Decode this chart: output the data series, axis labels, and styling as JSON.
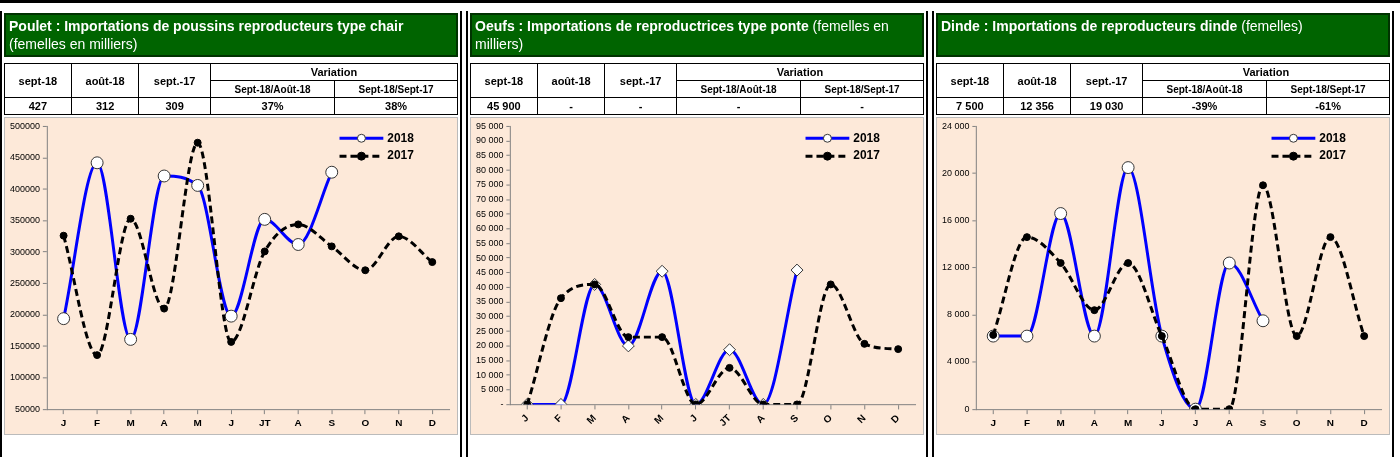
{
  "chart_data": [
    {
      "type": "line",
      "title": "Poulet : Importations de poussins reproducteurs type chair",
      "subtitle": "(femelles en milliers)",
      "annotations": [
        "sept-18",
        "août-18",
        "sept.-17",
        "Variation",
        "Sept-18/Août-18",
        "Sept-18/Sept-17",
        "427",
        "312",
        "309",
        "37%",
        "38%"
      ],
      "categories": [
        "J",
        "F",
        "M",
        "A",
        "M",
        "J",
        "JT",
        "A",
        "S",
        "O",
        "N",
        "D"
      ],
      "series": [
        {
          "name": "2018",
          "color": "#0000ff",
          "line_style": "solid",
          "marker": "circle",
          "values": [
            194000,
            442000,
            161000,
            421000,
            406000,
            198000,
            352000,
            312000,
            427000,
            null,
            null,
            null
          ]
        },
        {
          "name": "2017",
          "color": "#000000",
          "line_style": "dashed",
          "marker": "circle",
          "values": [
            326000,
            136000,
            353000,
            210000,
            474000,
            157000,
            301000,
            344000,
            309000,
            271000,
            325000,
            284000
          ]
        }
      ],
      "ylim": [
        50000,
        500000
      ],
      "yticks": [
        50000,
        100000,
        150000,
        200000,
        250000,
        300000,
        350000,
        400000,
        450000,
        500000
      ],
      "grid": false,
      "legend": "top right"
    },
    {
      "type": "line",
      "title": "Oeufs : Importations de reproductrices type ponte",
      "subtitle": "(femelles en milliers)",
      "annotations": [
        "sept-18",
        "août-18",
        "sept.-17",
        "Variation",
        "Sept-18/Août-18",
        "Sept-18/Sept-17",
        "45 900",
        "-",
        "-",
        "-",
        "-"
      ],
      "categories": [
        "J",
        "F",
        "M",
        "A",
        "M",
        "J",
        "JT",
        "A",
        "S",
        "O",
        "N",
        "D"
      ],
      "series": [
        {
          "name": "2018",
          "color": "#0000ff",
          "line_style": "solid",
          "marker": "diamond",
          "values": [
            0,
            0,
            41000,
            20000,
            45500,
            0,
            18700,
            0,
            45900,
            null,
            null,
            null
          ]
        },
        {
          "name": "2017",
          "color": "#000000",
          "line_style": "dashed",
          "marker": "circle",
          "values": [
            0,
            36300,
            41000,
            23000,
            23000,
            0,
            12500,
            0,
            0,
            41000,
            20700,
            18900
          ]
        }
      ],
      "ylim": [
        0,
        95000
      ],
      "yticks": [
        {
          "value": 0,
          "label": "-"
        },
        {
          "value": 5000,
          "label": "5 000"
        },
        {
          "value": 10000,
          "label": "10 000"
        },
        {
          "value": 15000,
          "label": "15 000"
        },
        {
          "value": 20000,
          "label": "20 000"
        },
        {
          "value": 25000,
          "label": "25 000"
        },
        {
          "value": 30000,
          "label": "30 000"
        },
        {
          "value": 35000,
          "label": "35 000"
        },
        {
          "value": 40000,
          "label": "40 000"
        },
        {
          "value": 45000,
          "label": "45 000"
        },
        {
          "value": 50000,
          "label": "50 000"
        },
        {
          "value": 55000,
          "label": "55 000"
        },
        {
          "value": 60000,
          "label": "60 000"
        },
        {
          "value": 65000,
          "label": "65 000"
        },
        {
          "value": 70000,
          "label": "70 000"
        },
        {
          "value": 75000,
          "label": "75 000"
        },
        {
          "value": 80000,
          "label": "80 000"
        },
        {
          "value": 85000,
          "label": "85 000"
        },
        {
          "value": 90000,
          "label": "90 000"
        },
        {
          "value": 95000,
          "label": "95 000"
        }
      ],
      "grid": false,
      "legend": "top right"
    },
    {
      "type": "line",
      "title": "Dinde : Importations de reproducteurs dinde",
      "subtitle": "(femelles)",
      "annotations": [
        "sept-18",
        "août-18",
        "sept.-17",
        "Variation",
        "Sept-18/Août-18",
        "Sept-18/Sept-17",
        "7 500",
        "12 356",
        "19 030",
        "-39%",
        "-61%"
      ],
      "categories": [
        "J",
        "F",
        "M",
        "A",
        "M",
        "J",
        "J",
        "A",
        "S",
        "O",
        "N",
        "D"
      ],
      "series": [
        {
          "name": "2018",
          "color": "#0000ff",
          "line_style": "solid",
          "marker": "circle",
          "values": [
            6200,
            6200,
            16600,
            6200,
            20500,
            6200,
            0,
            12400,
            7500,
            null,
            null,
            null
          ]
        },
        {
          "name": "2017",
          "color": "#000000",
          "line_style": "dashed",
          "marker": "circle",
          "values": [
            6300,
            14600,
            12400,
            8400,
            12400,
            6200,
            0,
            0,
            19000,
            6200,
            14600,
            6200
          ]
        }
      ],
      "ylim": [
        0,
        24000
      ],
      "yticks": [
        {
          "value": 0,
          "label": "0"
        },
        {
          "value": 4000,
          "label": "4 000"
        },
        {
          "value": 8000,
          "label": "8 000"
        },
        {
          "value": 12000,
          "label": "12 000"
        },
        {
          "value": 16000,
          "label": "16 000"
        },
        {
          "value": 20000,
          "label": "20 000"
        },
        {
          "value": 24000,
          "label": "24 000"
        }
      ],
      "grid": false,
      "legend": "top right"
    }
  ]
}
